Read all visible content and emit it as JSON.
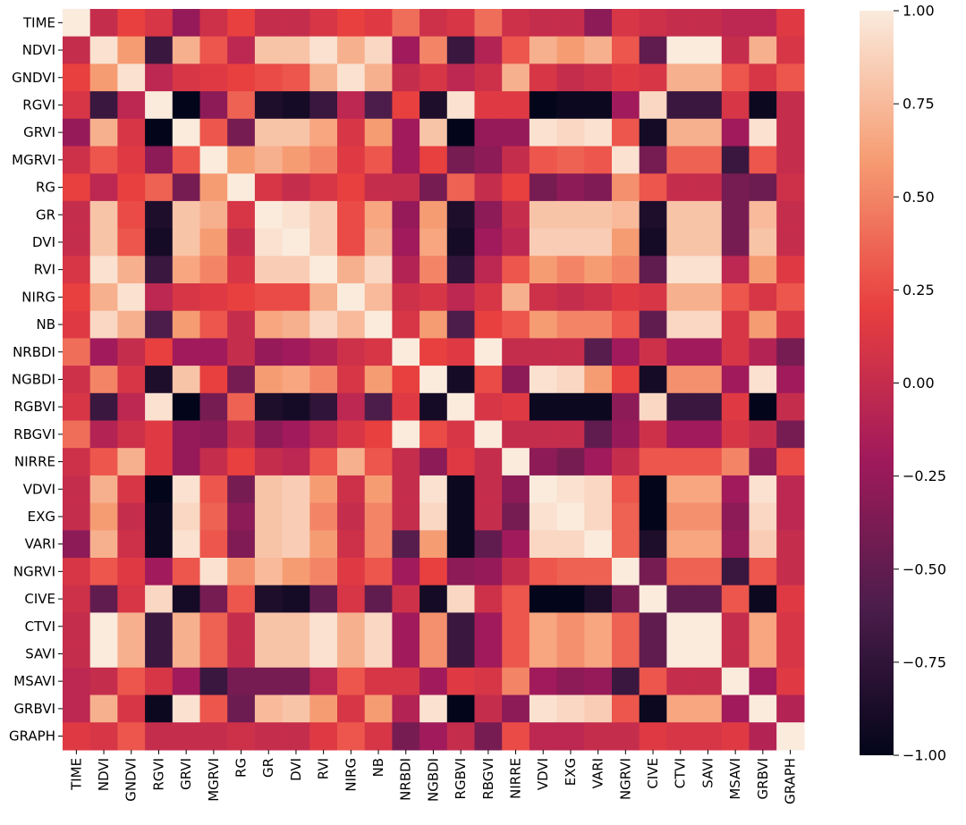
{
  "chart_data": {
    "type": "heatmap",
    "title": "",
    "xlabel": "",
    "ylabel": "",
    "categories": [
      "TIME",
      "NDVI",
      "GNDVI",
      "RGVI",
      "GRVI",
      "MGRVI",
      "RG",
      "GR",
      "DVI",
      "RVI",
      "NIRG",
      "NB",
      "NRBDI",
      "NGBDI",
      "RGBVI",
      "RBGVI",
      "NIRRE",
      "VDVI",
      "EXG",
      "VARI",
      "NGRVI",
      "CIVE",
      "CTVI",
      "SAVI",
      "MSAVI",
      "GRBVI",
      "GRAPH"
    ],
    "values": [
      [
        1.0,
        0.0,
        0.2,
        0.1,
        -0.25,
        0.05,
        0.2,
        0.0,
        0.0,
        0.1,
        0.2,
        0.15,
        0.4,
        0.05,
        0.1,
        0.4,
        0.05,
        0.0,
        0.0,
        -0.3,
        0.1,
        0.05,
        0.0,
        0.0,
        -0.05,
        -0.05,
        0.15
      ],
      [
        0.0,
        0.95,
        0.6,
        -0.7,
        0.7,
        0.3,
        -0.05,
        0.8,
        0.8,
        0.95,
        0.7,
        0.9,
        -0.2,
        0.5,
        -0.7,
        -0.1,
        0.3,
        0.7,
        0.6,
        0.7,
        0.3,
        -0.5,
        1.0,
        1.0,
        0.0,
        0.7,
        0.1
      ],
      [
        0.2,
        0.6,
        0.95,
        -0.05,
        0.1,
        0.15,
        0.2,
        0.25,
        0.3,
        0.7,
        0.95,
        0.7,
        0.0,
        0.1,
        -0.05,
        0.05,
        0.7,
        0.1,
        0.0,
        0.05,
        0.15,
        0.1,
        0.7,
        0.7,
        0.3,
        0.1,
        0.3
      ],
      [
        0.1,
        -0.7,
        -0.05,
        1.0,
        -1.0,
        -0.3,
        0.35,
        -0.85,
        -0.9,
        -0.7,
        -0.05,
        -0.6,
        0.2,
        -0.85,
        0.95,
        0.15,
        0.15,
        -1.0,
        -0.95,
        -0.95,
        -0.2,
        0.9,
        -0.7,
        -0.7,
        0.1,
        -0.95,
        0.0
      ],
      [
        -0.25,
        0.7,
        0.1,
        -1.0,
        1.0,
        0.3,
        -0.4,
        0.8,
        0.8,
        0.65,
        0.1,
        0.6,
        -0.2,
        0.8,
        -1.0,
        -0.25,
        -0.25,
        0.95,
        0.9,
        0.95,
        0.3,
        -0.9,
        0.7,
        0.7,
        -0.2,
        0.95,
        0.0
      ],
      [
        0.05,
        0.3,
        0.15,
        -0.3,
        0.3,
        1.0,
        0.6,
        0.7,
        0.6,
        0.5,
        0.15,
        0.3,
        -0.2,
        0.2,
        -0.4,
        -0.3,
        0.0,
        0.3,
        0.35,
        0.3,
        0.95,
        -0.4,
        0.35,
        0.35,
        -0.7,
        0.3,
        0.0
      ],
      [
        0.2,
        -0.05,
        0.2,
        0.35,
        -0.4,
        0.6,
        1.0,
        0.1,
        0.0,
        0.1,
        0.2,
        0.0,
        0.0,
        -0.4,
        0.35,
        0.0,
        0.2,
        -0.4,
        -0.3,
        -0.35,
        0.55,
        0.3,
        0.0,
        0.0,
        -0.4,
        -0.45,
        0.05
      ],
      [
        0.0,
        0.8,
        0.25,
        -0.85,
        0.8,
        0.7,
        0.1,
        1.0,
        0.95,
        0.85,
        0.25,
        0.65,
        -0.25,
        0.6,
        -0.85,
        -0.3,
        0.0,
        0.8,
        0.8,
        0.8,
        0.75,
        -0.85,
        0.8,
        0.8,
        -0.4,
        0.75,
        0.0
      ],
      [
        0.0,
        0.8,
        0.3,
        -0.9,
        0.8,
        0.6,
        0.0,
        0.95,
        1.0,
        0.85,
        0.25,
        0.7,
        -0.2,
        0.65,
        -0.9,
        -0.2,
        -0.05,
        0.85,
        0.85,
        0.85,
        0.6,
        -0.9,
        0.8,
        0.8,
        -0.4,
        0.8,
        0.0
      ],
      [
        0.1,
        0.95,
        0.7,
        -0.7,
        0.65,
        0.5,
        0.1,
        0.85,
        0.85,
        1.0,
        0.7,
        0.9,
        -0.1,
        0.5,
        -0.75,
        -0.05,
        0.3,
        0.6,
        0.5,
        0.6,
        0.5,
        -0.5,
        0.95,
        0.95,
        -0.05,
        0.6,
        0.15
      ],
      [
        0.2,
        0.7,
        0.95,
        -0.05,
        0.1,
        0.15,
        0.2,
        0.25,
        0.25,
        0.7,
        1.0,
        0.75,
        0.05,
        0.1,
        -0.05,
        0.1,
        0.7,
        0.05,
        0.0,
        0.05,
        0.15,
        0.1,
        0.7,
        0.7,
        0.3,
        0.1,
        0.3
      ],
      [
        0.15,
        0.9,
        0.7,
        -0.6,
        0.6,
        0.3,
        0.0,
        0.65,
        0.7,
        0.9,
        0.75,
        1.0,
        0.1,
        0.6,
        -0.6,
        0.2,
        0.3,
        0.6,
        0.5,
        0.5,
        0.3,
        -0.5,
        0.9,
        0.9,
        0.1,
        0.6,
        0.1
      ],
      [
        0.4,
        -0.2,
        0.0,
        0.2,
        -0.2,
        -0.2,
        0.0,
        -0.25,
        -0.2,
        -0.1,
        0.05,
        0.1,
        1.0,
        0.2,
        0.15,
        1.0,
        0.0,
        0.0,
        0.0,
        -0.55,
        -0.2,
        0.05,
        -0.2,
        -0.2,
        0.1,
        -0.1,
        -0.4
      ],
      [
        0.05,
        0.5,
        0.1,
        -0.85,
        0.8,
        0.2,
        -0.4,
        0.6,
        0.65,
        0.5,
        0.1,
        0.6,
        0.2,
        1.0,
        -0.9,
        0.25,
        -0.3,
        0.95,
        0.9,
        0.6,
        0.2,
        -0.9,
        0.55,
        0.55,
        -0.2,
        0.95,
        -0.2
      ],
      [
        0.1,
        -0.7,
        -0.05,
        0.95,
        -1.0,
        -0.4,
        0.35,
        -0.85,
        -0.9,
        -0.75,
        -0.05,
        -0.6,
        0.15,
        -0.9,
        1.0,
        0.1,
        0.15,
        -0.95,
        -0.95,
        -0.95,
        -0.3,
        0.9,
        -0.7,
        -0.7,
        0.15,
        -1.0,
        0.0
      ],
      [
        0.4,
        -0.1,
        0.05,
        0.15,
        -0.25,
        -0.3,
        0.0,
        -0.3,
        -0.2,
        -0.05,
        0.1,
        0.2,
        1.0,
        0.25,
        0.1,
        1.0,
        0.0,
        0.0,
        0.0,
        -0.5,
        -0.25,
        0.05,
        -0.2,
        -0.2,
        0.1,
        0.0,
        -0.4
      ],
      [
        0.05,
        0.3,
        0.7,
        0.15,
        -0.25,
        0.0,
        0.2,
        0.0,
        -0.05,
        0.3,
        0.7,
        0.3,
        0.0,
        -0.3,
        0.15,
        0.0,
        1.0,
        -0.3,
        -0.4,
        -0.2,
        0.0,
        0.3,
        0.3,
        0.3,
        0.5,
        -0.3,
        0.25
      ],
      [
        0.0,
        0.7,
        0.1,
        -1.0,
        0.95,
        0.3,
        -0.4,
        0.8,
        0.85,
        0.6,
        0.05,
        0.6,
        0.0,
        0.95,
        -0.95,
        0.0,
        -0.3,
        1.0,
        0.95,
        0.9,
        0.3,
        -1.0,
        0.65,
        0.65,
        -0.2,
        0.95,
        -0.05
      ],
      [
        0.0,
        0.6,
        0.0,
        -0.95,
        0.9,
        0.35,
        -0.3,
        0.8,
        0.85,
        0.5,
        0.0,
        0.5,
        0.0,
        0.9,
        -0.95,
        0.0,
        -0.4,
        0.95,
        1.0,
        0.9,
        0.35,
        -1.0,
        0.55,
        0.55,
        -0.3,
        0.9,
        -0.05
      ],
      [
        -0.3,
        0.7,
        0.05,
        -0.95,
        0.95,
        0.3,
        -0.35,
        0.8,
        0.85,
        0.6,
        0.05,
        0.5,
        -0.55,
        0.6,
        -0.95,
        -0.5,
        -0.2,
        0.9,
        0.9,
        1.0,
        0.35,
        -0.85,
        0.65,
        0.65,
        -0.25,
        0.85,
        0.0
      ],
      [
        0.1,
        0.3,
        0.15,
        -0.2,
        0.3,
        0.95,
        0.55,
        0.75,
        0.6,
        0.5,
        0.15,
        0.3,
        -0.2,
        0.2,
        -0.3,
        -0.25,
        0.0,
        0.3,
        0.35,
        0.35,
        1.0,
        -0.4,
        0.35,
        0.35,
        -0.7,
        0.3,
        0.0
      ],
      [
        0.05,
        -0.5,
        0.1,
        0.9,
        -0.9,
        -0.4,
        0.3,
        -0.85,
        -0.9,
        -0.5,
        0.1,
        -0.5,
        0.05,
        -0.9,
        0.9,
        0.05,
        0.3,
        -1.0,
        -1.0,
        -0.85,
        -0.4,
        1.0,
        -0.5,
        -0.5,
        0.3,
        -0.95,
        0.15
      ],
      [
        0.0,
        1.0,
        0.7,
        -0.7,
        0.7,
        0.35,
        0.0,
        0.8,
        0.8,
        0.95,
        0.7,
        0.9,
        -0.2,
        0.55,
        -0.7,
        -0.2,
        0.3,
        0.65,
        0.55,
        0.65,
        0.35,
        -0.5,
        1.0,
        1.0,
        0.0,
        0.65,
        0.1
      ],
      [
        0.0,
        1.0,
        0.7,
        -0.7,
        0.7,
        0.35,
        0.0,
        0.8,
        0.8,
        0.95,
        0.7,
        0.9,
        -0.2,
        0.55,
        -0.7,
        -0.2,
        0.3,
        0.65,
        0.55,
        0.65,
        0.35,
        -0.5,
        1.0,
        1.0,
        0.0,
        0.65,
        0.1
      ],
      [
        -0.05,
        0.0,
        0.3,
        0.1,
        -0.2,
        -0.7,
        -0.4,
        -0.4,
        -0.4,
        -0.05,
        0.3,
        0.1,
        0.1,
        -0.2,
        0.15,
        0.1,
        0.5,
        -0.2,
        -0.3,
        -0.25,
        -0.7,
        0.3,
        0.0,
        0.0,
        1.0,
        -0.2,
        0.15
      ],
      [
        -0.05,
        0.7,
        0.1,
        -0.95,
        0.95,
        0.3,
        -0.45,
        0.75,
        0.8,
        0.6,
        0.1,
        0.6,
        -0.1,
        0.95,
        -1.0,
        0.0,
        -0.3,
        0.95,
        0.9,
        0.85,
        0.3,
        -0.95,
        0.65,
        0.65,
        -0.2,
        1.0,
        -0.1
      ],
      [
        0.15,
        0.1,
        0.3,
        0.0,
        0.0,
        0.0,
        0.05,
        0.0,
        0.0,
        0.15,
        0.3,
        0.1,
        -0.4,
        -0.2,
        0.0,
        -0.4,
        0.25,
        -0.05,
        -0.05,
        0.0,
        0.0,
        0.15,
        0.1,
        0.1,
        0.15,
        -0.1,
        1.0
      ]
    ],
    "colorbar": {
      "vmin": -1.0,
      "vmax": 1.0,
      "ticks": [
        -1.0,
        -0.75,
        -0.5,
        -0.25,
        0.0,
        0.25,
        0.5,
        0.75,
        1.0
      ],
      "tick_labels": [
        "−1.00",
        "−0.75",
        "−0.50",
        "−0.25",
        "0.00",
        "0.25",
        "0.50",
        "0.75",
        "1.00"
      ],
      "colormap": "rocket",
      "colormap_stops": [
        "#03051a",
        "#4c1d4b",
        "#a11a5b",
        "#e83f3f",
        "#f69c73",
        "#faebdd"
      ]
    },
    "grid": false,
    "legend": "colorbar-right"
  }
}
